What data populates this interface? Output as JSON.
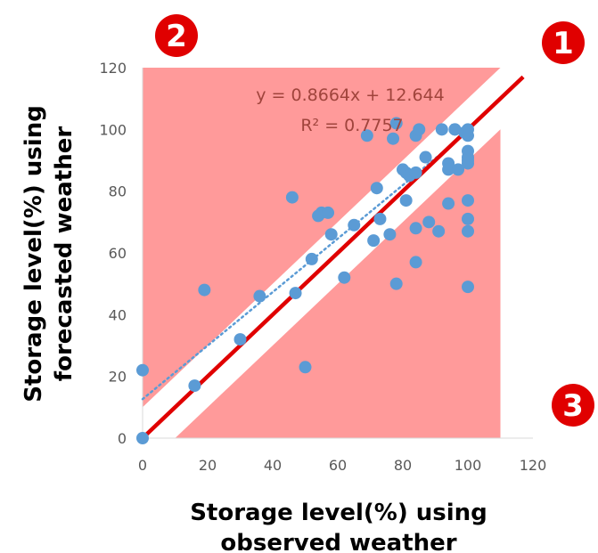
{
  "chart_data": {
    "type": "scatter",
    "xlabel": "Storage level(%) using observed weather",
    "xlabel_lines": [
      "Storage level(%) using",
      "observed weather"
    ],
    "ylabel": "Storage level(%) using forecasted weather",
    "ylabel_lines": [
      "Storage level(%) using",
      "forecasted weather"
    ],
    "xlim": [
      0,
      120
    ],
    "ylim": [
      0,
      120
    ],
    "xticks": [
      "0",
      "20",
      "40",
      "60",
      "80",
      "100",
      "120"
    ],
    "yticks": [
      "0",
      "20",
      "40",
      "60",
      "80",
      "100",
      "120"
    ],
    "grid": false,
    "annotations": {
      "equation": "y = 0.8664x + 12.644",
      "r_squared": "R² = 0.7757",
      "badges": [
        "1",
        "2",
        "3"
      ]
    },
    "trendline": {
      "slope": 0.8664,
      "intercept": 12.644,
      "style": "dotted"
    },
    "identity_line": {
      "slope": 1,
      "intercept": 0,
      "color": "#e00000"
    },
    "band_halfwidth": 10,
    "colors": {
      "points": "#5b9bd5",
      "region": "#ff9a9a",
      "identity": "#e00000",
      "badge": "#e00000",
      "trend": "#5b9bd5"
    },
    "series": [
      {
        "points": [
          [
            0,
            0
          ],
          [
            0,
            22
          ],
          [
            16,
            17
          ],
          [
            30,
            32
          ],
          [
            36,
            46
          ],
          [
            47,
            47
          ],
          [
            52,
            58
          ],
          [
            58,
            66
          ],
          [
            62,
            52
          ],
          [
            65,
            69
          ],
          [
            71,
            64
          ],
          [
            72,
            81
          ],
          [
            73,
            71
          ],
          [
            78,
            50
          ],
          [
            80,
            87
          ],
          [
            81,
            86
          ],
          [
            81,
            77
          ],
          [
            82,
            85
          ],
          [
            84,
            86
          ],
          [
            87,
            91
          ],
          [
            92,
            100
          ],
          [
            94,
            89
          ],
          [
            94,
            87
          ],
          [
            96,
            100
          ],
          [
            97,
            87
          ],
          [
            100,
            98
          ],
          [
            100,
            91
          ],
          [
            100,
            89
          ],
          [
            100,
            93
          ],
          [
            100,
            100
          ],
          [
            99,
            99
          ],
          [
            19,
            48
          ],
          [
            46,
            78
          ],
          [
            50,
            23
          ],
          [
            54,
            72
          ],
          [
            55,
            73
          ],
          [
            57,
            73
          ],
          [
            69,
            98
          ],
          [
            77,
            97
          ],
          [
            78,
            102
          ],
          [
            76,
            66
          ],
          [
            84,
            68
          ],
          [
            84,
            57
          ],
          [
            84,
            98
          ],
          [
            85,
            100
          ],
          [
            88,
            70
          ],
          [
            91,
            67
          ],
          [
            94,
            76
          ],
          [
            96,
            100
          ],
          [
            100,
            77
          ],
          [
            100,
            71
          ],
          [
            100,
            67
          ],
          [
            100,
            49
          ],
          [
            100,
            90
          ]
        ]
      }
    ]
  }
}
